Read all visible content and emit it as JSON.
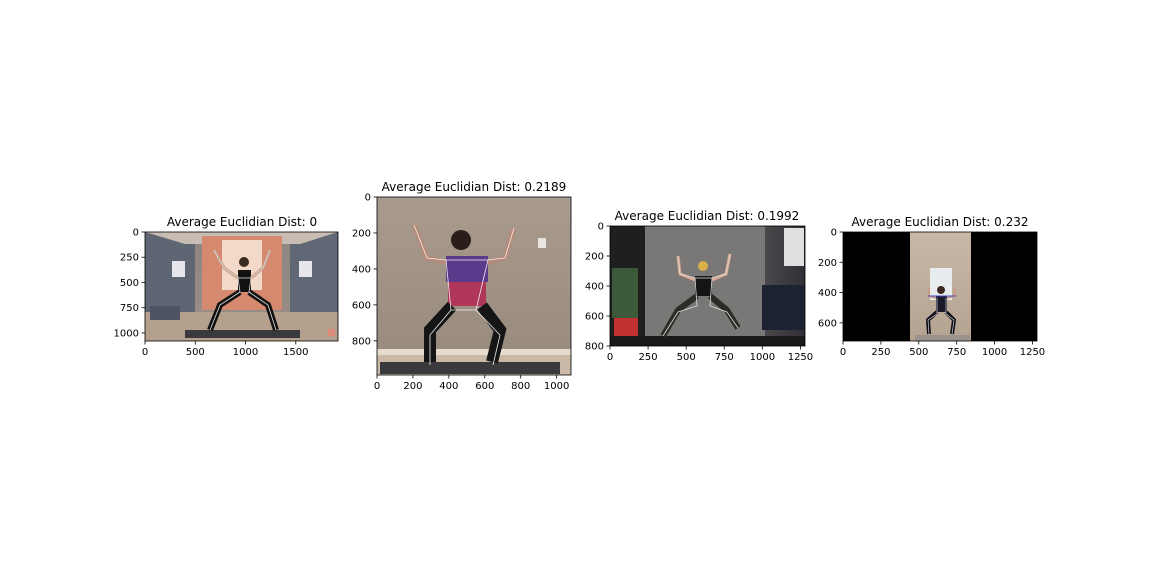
{
  "chart_data": [
    {
      "type": "image",
      "title": "Average Euclidian Dist: 0",
      "xlim": [
        0,
        1920
      ],
      "ylim": [
        1080,
        0
      ],
      "xticks": [
        0,
        500,
        1000,
        1500
      ],
      "yticks": [
        0,
        250,
        500,
        750,
        1000
      ],
      "xtick_labels": [
        "0",
        "500",
        "1000",
        "1500"
      ],
      "ytick_labels": [
        "0",
        "250",
        "500",
        "750",
        "1000"
      ],
      "grid": false
    },
    {
      "type": "image",
      "title": "Average Euclidian Dist: 0.2189",
      "xlim": [
        0,
        1080
      ],
      "ylim": [
        990,
        0
      ],
      "xticks": [
        0,
        200,
        400,
        600,
        800,
        1000
      ],
      "yticks": [
        0,
        200,
        400,
        600,
        800
      ],
      "xtick_labels": [
        "0",
        "200",
        "400",
        "600",
        "800",
        "1000"
      ],
      "ytick_labels": [
        "0",
        "200",
        "400",
        "600",
        "800"
      ],
      "grid": false
    },
    {
      "type": "image",
      "title": "Average Euclidian Dist: 0.1992",
      "xlim": [
        0,
        1280
      ],
      "ylim": [
        800,
        0
      ],
      "xticks": [
        0,
        250,
        500,
        750,
        1000,
        1250
      ],
      "yticks": [
        0,
        200,
        400,
        600,
        800
      ],
      "xtick_labels": [
        "0",
        "250",
        "500",
        "750",
        "1000",
        "1250"
      ],
      "ytick_labels": [
        "0",
        "200",
        "400",
        "600",
        "800"
      ],
      "grid": false
    },
    {
      "type": "image",
      "title": "Average Euclidian Dist: 0.232",
      "xlim": [
        0,
        1280
      ],
      "ylim": [
        720,
        0
      ],
      "xticks": [
        0,
        250,
        500,
        750,
        1000,
        1250
      ],
      "yticks": [
        0,
        200,
        400,
        600
      ],
      "xtick_labels": [
        "0",
        "250",
        "500",
        "750",
        "1000",
        "1250"
      ],
      "ytick_labels": [
        "0",
        "200",
        "400",
        "600"
      ],
      "grid": false
    }
  ]
}
